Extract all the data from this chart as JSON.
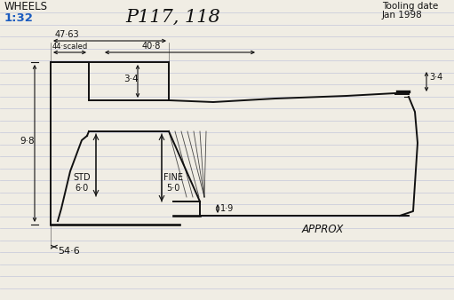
{
  "title": "P117, 118",
  "subtitle_left": "WHEELS",
  "scale": "1:32",
  "tooling_date_line1": "Tooling date",
  "tooling_date_line2": "Jan 1998",
  "approx_label": "APPROX",
  "std_label": "STD",
  "std_value": "6·0",
  "fine_label": "FINE",
  "fine_value": "5·0",
  "dim_47_63": "47·63",
  "dim_40_8": "40·8",
  "dim_3_4_top": "3·4",
  "dim_3_4_right": "3·4",
  "dim_9_8": "9·8",
  "dim_1_9": "1·9",
  "dim_54_6": "54·6",
  "dim_44_scaled": "44·scaled",
  "bg_color": "#f0ede4",
  "line_color": "#111111",
  "blue_color": "#1a5bbf",
  "ruled_color": "#b8bcd8",
  "fig_w": 5.11,
  "fig_h": 3.38,
  "dpi": 100
}
